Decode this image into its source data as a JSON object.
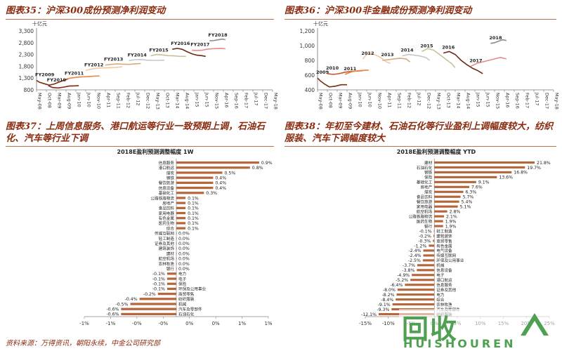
{
  "panels": [
    {
      "title": "图表35：沪深300成份预测净利润变动"
    },
    {
      "title": "图表36：沪深300非金融成份预测净利润变动"
    },
    {
      "title": "图表37：上周信息服务、港口航运等行业一致预期上调，石油石化、汽车等行业下调"
    },
    {
      "title": "图表38：年初至今建材、石油石化等行业盈利上调幅度较大，纺织服装、汽车下调幅度较大"
    }
  ],
  "source_note": "资料来源：万得资讯，朝阳永续，中金公司研究部",
  "watermark": {
    "big": "回收",
    "text": "HUISHOUREN"
  },
  "colors": {
    "title": "#8a2b10",
    "bar": "#b5663a"
  },
  "chart_data": [
    {
      "type": "line",
      "unit": "十亿元",
      "ylim": [
        800,
        3300
      ],
      "yticks": [
        "3,300",
        "2,800",
        "2,300",
        "1,800",
        "1,300",
        "800"
      ],
      "xticks": [
        "May-08",
        "Oct-08",
        "Mar-09",
        "Aug-09",
        "Jan-10",
        "Jun-10",
        "Nov-10",
        "Apr-11",
        "Sep-11",
        "Feb-12",
        "Jul-12",
        "Dec-12",
        "May-13",
        "Oct-13",
        "Mar-14",
        "Aug-14",
        "Jan-15",
        "Jun-15",
        "Nov-15",
        "Apr-16",
        "Sep-16",
        "Feb-17",
        "Jul-17",
        "Dec-17",
        "May-18"
      ],
      "series": [
        {
          "name": "FY2009",
          "color": "#7b2d12",
          "points": [
            [
              0,
              1200
            ],
            [
              0.3,
              1120
            ],
            [
              0.8,
              1060
            ],
            [
              1.3,
              1000
            ],
            [
              1.8,
              1050
            ],
            [
              2.3,
              1130
            ],
            [
              2.8,
              1210
            ],
            [
              3.2,
              1260
            ]
          ]
        },
        {
          "name": "FY2010",
          "color": "#7b2d12",
          "points": [
            [
              1.2,
              980
            ],
            [
              1.6,
              900
            ],
            [
              2.2,
              880
            ],
            [
              2.8,
              920
            ],
            [
              3.3,
              960
            ],
            [
              3.9,
              970
            ],
            [
              4.3,
              975
            ]
          ]
        },
        {
          "name": "FY2011",
          "color": "#e8873f",
          "points": [
            [
              3.0,
              1260
            ],
            [
              3.5,
              1300
            ],
            [
              4.0,
              1330
            ],
            [
              4.6,
              1350
            ],
            [
              5.2,
              1360
            ],
            [
              5.8,
              1380
            ],
            [
              6.4,
              1390
            ]
          ]
        },
        {
          "name": "FY2012",
          "color": "#f2c8a2",
          "points": [
            [
              5.0,
              1620
            ],
            [
              5.6,
              1680
            ],
            [
              6.2,
              1720
            ],
            [
              6.8,
              1730
            ],
            [
              7.4,
              1740
            ],
            [
              8.0,
              1745
            ],
            [
              8.7,
              1780
            ]
          ]
        },
        {
          "name": "FY2013",
          "color": "#d8a97a",
          "points": [
            [
              7.0,
              1850
            ],
            [
              7.6,
              1880
            ],
            [
              8.2,
              1900
            ],
            [
              8.8,
              1890
            ],
            [
              9.4,
              1880
            ],
            [
              10.0,
              1900
            ],
            [
              10.6,
              1920
            ]
          ]
        },
        {
          "name": "FY2014",
          "color": "#c7c7c7",
          "points": [
            [
              9.4,
              2040
            ],
            [
              10.0,
              2080
            ],
            [
              10.6,
              2090
            ],
            [
              11.2,
              2060
            ],
            [
              11.8,
              2050
            ],
            [
              12.4,
              2050
            ],
            [
              13.0,
              2060
            ]
          ]
        },
        {
          "name": "FY2015",
          "color": "#c9c09a",
          "points": [
            [
              11.6,
              2240
            ],
            [
              12.2,
              2300
            ],
            [
              12.8,
              2280
            ],
            [
              13.4,
              2250
            ],
            [
              14.0,
              2240
            ],
            [
              14.6,
              2220
            ],
            [
              15.2,
              2220
            ]
          ]
        },
        {
          "name": "FY2016",
          "color": "#6b2a14",
          "points": [
            [
              13.8,
              2520
            ],
            [
              14.3,
              2560
            ],
            [
              14.8,
              2520
            ],
            [
              15.3,
              2420
            ],
            [
              15.8,
              2330
            ],
            [
              16.3,
              2270
            ],
            [
              16.8,
              2250
            ],
            [
              17.2,
              2220
            ]
          ]
        },
        {
          "name": "FY2017",
          "color": "#e38a8a",
          "points": [
            [
              15.8,
              2480
            ],
            [
              16.3,
              2470
            ],
            [
              16.8,
              2480
            ],
            [
              17.3,
              2520
            ],
            [
              17.8,
              2540
            ],
            [
              18.3,
              2550
            ],
            [
              18.8,
              2560
            ],
            [
              19.2,
              2540
            ]
          ]
        },
        {
          "name": "FY2018",
          "color": "#8c8c8c",
          "points": [
            [
              17.6,
              2880
            ],
            [
              18.0,
              2890
            ],
            [
              18.4,
              2920
            ],
            [
              18.8,
              2950
            ],
            [
              19.0,
              2950
            ],
            [
              19.2,
              2920
            ]
          ]
        }
      ]
    },
    {
      "type": "line",
      "unit": "十亿元",
      "ylim": [
        400,
        1200
      ],
      "yticks": [
        "1,200",
        "1,000",
        "800",
        "600",
        "400"
      ],
      "xticks": [
        "May-08",
        "Oct-08",
        "Mar-09",
        "Aug-09",
        "Jan-10",
        "Jun-10",
        "Nov-10",
        "Apr-11",
        "Sep-11",
        "Feb-12",
        "Jul-12",
        "Dec-12",
        "May-13",
        "Oct-13",
        "Mar-14",
        "Aug-14",
        "Jan-15",
        "Jun-15",
        "Nov-15",
        "Apr-16",
        "Sep-16",
        "Feb-17",
        "Jul-17",
        "Dec-17",
        "May-18"
      ],
      "series": [
        {
          "name": "2009",
          "color": "#7b2d12",
          "points": [
            [
              0,
              560
            ],
            [
              0.3,
              520
            ],
            [
              0.7,
              480
            ],
            [
              1.2,
              440
            ],
            [
              1.8,
              450
            ],
            [
              2.4,
              470
            ],
            [
              3.0,
              470
            ]
          ]
        },
        {
          "name": "2010",
          "color": "#c8502a",
          "points": [
            [
              1.0,
              620
            ],
            [
              1.6,
              610
            ],
            [
              2.2,
              620
            ],
            [
              2.8,
              640
            ],
            [
              3.4,
              650
            ],
            [
              4.0,
              655
            ],
            [
              4.6,
              660
            ]
          ]
        },
        {
          "name": "2011",
          "color": "#e8873f",
          "points": [
            [
              2.8,
              610
            ],
            [
              3.2,
              630
            ],
            [
              3.6,
              650
            ],
            [
              4.2,
              660
            ],
            [
              4.8,
              665
            ],
            [
              5.2,
              668
            ]
          ]
        },
        {
          "name": "2012",
          "color": "#f2c8a2",
          "points": [
            [
              4.6,
              820
            ],
            [
              5.0,
              880
            ],
            [
              5.4,
              900
            ],
            [
              5.8,
              880
            ],
            [
              6.4,
              840
            ],
            [
              7.0,
              780
            ],
            [
              7.4,
              760
            ]
          ]
        },
        {
          "name": "2013",
          "color": "#d8a97a",
          "points": [
            [
              6.6,
              800
            ],
            [
              7.2,
              810
            ],
            [
              7.8,
              820
            ],
            [
              8.4,
              830
            ],
            [
              9.0,
              820
            ],
            [
              9.4,
              780
            ]
          ]
        },
        {
          "name": "2014",
          "color": "#c7c7c7",
          "points": [
            [
              8.6,
              860
            ],
            [
              9.2,
              880
            ],
            [
              9.8,
              870
            ],
            [
              10.4,
              860
            ],
            [
              11.0,
              840
            ],
            [
              11.4,
              800
            ]
          ]
        },
        {
          "name": "2015",
          "color": "#c9c09a",
          "points": [
            [
              10.6,
              920
            ],
            [
              11.2,
              960
            ],
            [
              11.8,
              940
            ],
            [
              12.4,
              880
            ],
            [
              13.0,
              820
            ],
            [
              13.6,
              760
            ],
            [
              14.0,
              700
            ]
          ]
        },
        {
          "name": "2016",
          "color": "#6b2a14",
          "points": [
            [
              12.8,
              900
            ],
            [
              13.4,
              920
            ],
            [
              14.0,
              880
            ],
            [
              14.6,
              800
            ],
            [
              15.2,
              740
            ],
            [
              15.8,
              690
            ],
            [
              16.3,
              660
            ],
            [
              16.8,
              620
            ]
          ]
        },
        {
          "name": "2017",
          "color": "#e38a8a",
          "points": [
            [
              15.6,
              720
            ],
            [
              16.2,
              760
            ],
            [
              16.8,
              780
            ],
            [
              17.4,
              800
            ],
            [
              18.0,
              820
            ],
            [
              18.6,
              840
            ],
            [
              19.2,
              820
            ]
          ]
        },
        {
          "name": "2018",
          "color": "#8c8c8c",
          "points": [
            [
              17.6,
              1030
            ],
            [
              18.0,
              1040
            ],
            [
              18.4,
              1060
            ],
            [
              18.8,
              1080
            ],
            [
              19.2,
              1070
            ]
          ]
        }
      ]
    },
    {
      "type": "bar",
      "orientation": "horizontal",
      "title": "2018E盈利预测调整幅度 1W",
      "xlim": [
        -1,
        1
      ],
      "xticks": [
        "-1%",
        "-1%",
        "-0%",
        "-0%",
        "0%",
        "0%",
        "1%",
        "1%"
      ],
      "categories": [
        "信息服务",
        "港口航运",
        "煤炭",
        "钢铁",
        "餐饮旅游",
        "信息设备",
        "基础化工",
        "公路铁路物流",
        "房地产",
        "食品饮料",
        "家用电器",
        "有色金属",
        "医药生物",
        "综合",
        "传媒互联网",
        "轻工制造",
        "证券及其他",
        "建筑装饰",
        "建材",
        "航空机场",
        "农林牧渔",
        "银行",
        "电力",
        "电子",
        "保险",
        "环保及公用事业",
        "商贸零售",
        "纺织服装",
        "机械",
        "汽车及零部件",
        "石油石化"
      ],
      "values": [
        0.9,
        0.8,
        0.5,
        0.4,
        0.4,
        0.4,
        0.3,
        0.1,
        0.1,
        0.1,
        0.1,
        0.1,
        0.1,
        0.1,
        0.0,
        0.0,
        0.0,
        0.0,
        0.0,
        0.0,
        0.0,
        0.0,
        -0.1,
        -0.1,
        -0.1,
        -0.1,
        -0.2,
        -0.4,
        -0.5,
        -0.6,
        -0.6
      ],
      "labels": [
        "0.9%",
        "0.8%",
        "0.5%",
        "0.4%",
        "0.4%",
        "0.4%",
        "0.3%",
        "0.1%",
        "0.1%",
        "0.1%",
        "0.1%",
        "0.1%",
        "0.1%",
        "0.1%",
        "0.0%",
        "0.0%",
        "0.0%",
        "0.0%",
        "0.0%",
        "0.0%",
        "0.0%",
        "0.0%",
        "-0.1%",
        "-0.1%",
        "-0.1%",
        "-0.1%",
        "-0.2%",
        "-0.4%",
        "-0.5%",
        "-0.6%",
        "-0.6%"
      ]
    },
    {
      "type": "bar",
      "orientation": "horizontal",
      "title": "2018E盈利预测调整幅度 YTD",
      "xlim": [
        -15,
        25
      ],
      "xticks": [
        "-15%",
        "-10%",
        "-5%",
        "0%",
        "5%",
        "10%",
        "15%",
        "20%",
        "25%"
      ],
      "categories": [
        "建材",
        "石油石化",
        "钢铁",
        "保险",
        "基础化工",
        "房地产",
        "煤炭",
        "食品饮料",
        "餐饮旅游",
        "家用电器",
        "航空机场",
        "公路铁路物流",
        "医药生物",
        "银行",
        "轻工制造",
        "建筑装饰",
        "商贸零售",
        "有色金属",
        "电气设备",
        "传媒互联网",
        "环保及公用事业",
        "机械",
        "信息设备",
        "电子",
        "港口航运",
        "信息服务",
        "证券及其他",
        "电力",
        "综合",
        "农林牧渔",
        "汽车及零部件",
        "纺织服装"
      ],
      "values": [
        21.8,
        19.7,
        16.8,
        13.6,
        9.1,
        7.6,
        6.3,
        5.7,
        5.4,
        5.1,
        2.8,
        2.1,
        1.9,
        1.9,
        -0.1,
        -0.2,
        -0.3,
        -1.2,
        -2.4,
        -2.4,
        -2.5,
        -3.7,
        -3.8,
        -4.9,
        -5.2,
        -6.4,
        -8.0,
        -8.2,
        -8.4,
        -9.1,
        -9.3,
        -12.1
      ],
      "labels": [
        "21.8%",
        "19.7%",
        "16.8%",
        "13.6%",
        "9.1%",
        "7.6%",
        "6.3%",
        "5.7%",
        "5.4%",
        "5.1%",
        "2.8%",
        "2.1%",
        "1.9%",
        "1.9%",
        "-0.1%",
        "-0.2%",
        "-0.3%",
        "-1.2%",
        "-2.4%",
        "-2.4%",
        "-2.5%",
        "-3.7%",
        "-3.8%",
        "-4.9%",
        "-5.2%",
        "-6.4%",
        "-8.0%",
        "-8.2%",
        "-8.4%",
        "-9.1%",
        "-9.3%",
        "-12.1%"
      ]
    }
  ]
}
